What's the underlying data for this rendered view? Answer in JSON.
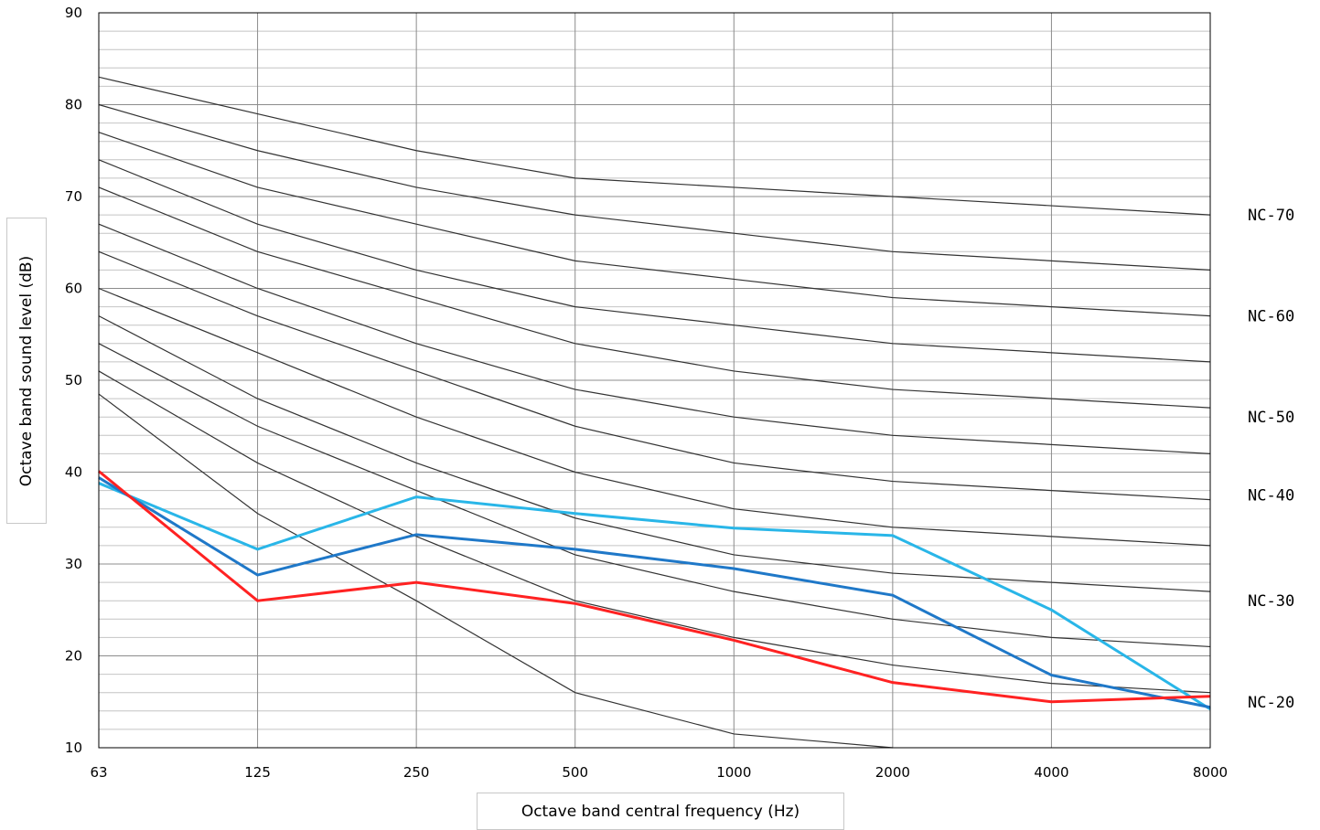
{
  "chart_data": {
    "type": "line",
    "title": "",
    "xlabel": "Octave band central frequency (Hz)",
    "ylabel": "Octave band sound level (dB)",
    "x_categories": [
      "63",
      "125",
      "250",
      "500",
      "1000",
      "2000",
      "4000",
      "8000"
    ],
    "ylim": [
      10,
      90
    ],
    "y_ticks": [
      10,
      20,
      30,
      40,
      50,
      60,
      70,
      80,
      90
    ],
    "y_minor_step": 2,
    "grid": true,
    "nc_curves": [
      {
        "values": [
          48.5,
          35.5,
          26,
          16,
          11.5,
          10,
          null,
          null
        ]
      },
      {
        "values": [
          51,
          41,
          33,
          26,
          22,
          19,
          17,
          16
        ]
      },
      {
        "values": [
          54,
          45,
          38,
          31,
          27,
          24,
          22,
          21
        ]
      },
      {
        "values": [
          57,
          48,
          41,
          35,
          31,
          29,
          28,
          27
        ]
      },
      {
        "values": [
          60,
          53,
          46,
          40,
          36,
          34,
          33,
          32
        ]
      },
      {
        "values": [
          64,
          57,
          51,
          45,
          41,
          39,
          38,
          37
        ]
      },
      {
        "values": [
          67,
          60,
          54,
          49,
          46,
          44,
          43,
          42
        ]
      },
      {
        "values": [
          71,
          64,
          59,
          54,
          51,
          49,
          48,
          47
        ]
      },
      {
        "values": [
          74,
          67,
          62,
          58,
          56,
          54,
          53,
          52
        ]
      },
      {
        "values": [
          77,
          71,
          67,
          63,
          61,
          59,
          58,
          57
        ]
      },
      {
        "values": [
          80,
          75,
          71,
          68,
          66,
          64,
          63,
          62
        ]
      },
      {
        "values": [
          83,
          79,
          75,
          72,
          71,
          70,
          69,
          68
        ]
      }
    ],
    "nc_labels": [
      {
        "text": "NC-70",
        "y": 68
      },
      {
        "text": "NC-60",
        "y": 57
      },
      {
        "text": "NC-50",
        "y": 46
      },
      {
        "text": "NC-40",
        "y": 37.5
      },
      {
        "text": "NC-30",
        "y": 26
      },
      {
        "text": "NC-20",
        "y": 15
      }
    ],
    "series": [
      {
        "color": "#29b6e8",
        "values": [
          38.8,
          31.6,
          37.3,
          35.5,
          33.9,
          33.1,
          25.0,
          14.2
        ]
      },
      {
        "color": "#1f78c8",
        "values": [
          39.4,
          28.8,
          33.2,
          31.6,
          29.5,
          26.6,
          17.9,
          14.4
        ]
      },
      {
        "color": "#ff2222",
        "values": [
          40.1,
          26.0,
          28.0,
          25.7,
          21.7,
          17.1,
          15.0,
          15.6
        ]
      }
    ],
    "colors": {
      "nc_curve": "#333333",
      "grid": "#a0a0a0",
      "frame": "#000000"
    }
  }
}
